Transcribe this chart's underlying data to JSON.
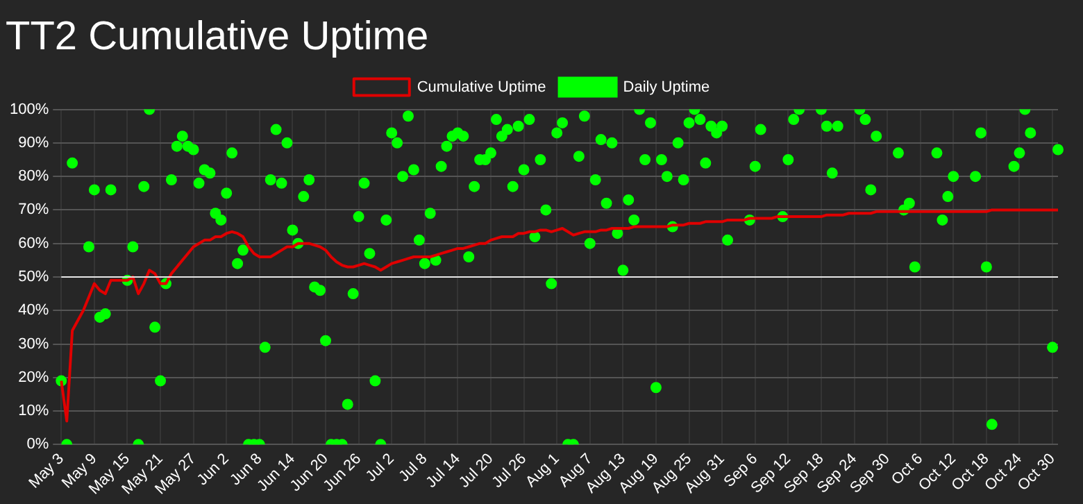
{
  "chart_data": {
    "type": "line",
    "title": "TT2 Cumulative Uptime",
    "categories": [
      "May 3",
      null,
      null,
      null,
      null,
      null,
      "May 9",
      null,
      null,
      null,
      null,
      null,
      "May 15",
      null,
      null,
      null,
      null,
      null,
      "May 21",
      null,
      null,
      null,
      null,
      null,
      "May 27",
      null,
      null,
      null,
      null,
      null,
      "Jun 2",
      null,
      null,
      null,
      null,
      null,
      "Jun 8",
      null,
      null,
      null,
      null,
      null,
      "Jun 14",
      null,
      null,
      null,
      null,
      null,
      "Jun 20",
      null,
      null,
      null,
      null,
      null,
      "Jun 26",
      null,
      null,
      null,
      null,
      null,
      "Jul 2",
      null,
      null,
      null,
      null,
      null,
      "Jul 8",
      null,
      null,
      null,
      null,
      null,
      "Jul 14",
      null,
      null,
      null,
      null,
      null,
      "Jul 20",
      null,
      null,
      null,
      null,
      null,
      "Jul 26",
      null,
      null,
      null,
      null,
      null,
      "Aug 1",
      null,
      null,
      null,
      null,
      null,
      "Aug 7",
      null,
      null,
      null,
      null,
      null,
      "Aug 13",
      null,
      null,
      null,
      null,
      null,
      "Aug 19",
      null,
      null,
      null,
      null,
      null,
      "Aug 25",
      null,
      null,
      null,
      null,
      null,
      "Aug 31",
      null,
      null,
      null,
      null,
      null,
      "Sep 6",
      null,
      null,
      null,
      null,
      null,
      "Sep 12",
      null,
      null,
      null,
      null,
      null,
      "Sep 18",
      null,
      null,
      null,
      null,
      null,
      "Sep 24",
      null,
      null,
      null,
      null,
      null,
      "Sep 30",
      null,
      null,
      null,
      null,
      null,
      "Oct 6",
      null,
      null,
      null,
      null,
      null,
      "Oct 12",
      null,
      null,
      null,
      null,
      null,
      "Oct 18",
      null,
      null,
      null,
      null,
      null,
      "Oct 24",
      null,
      null,
      null,
      null,
      null,
      "Oct 30",
      null
    ],
    "series": [
      {
        "name": "Cumulative Uptime",
        "type": "line",
        "marker": "none",
        "color": "#e00000",
        "values": [
          19,
          7,
          34,
          37,
          40,
          44,
          48,
          46,
          45,
          49,
          49,
          49,
          49,
          50,
          45,
          48,
          52,
          51,
          48,
          48,
          51,
          53,
          55,
          57,
          59,
          60,
          61,
          61,
          62,
          62,
          63,
          63.5,
          63,
          62,
          59,
          57,
          56,
          56,
          56,
          57,
          58,
          59,
          59,
          60,
          60,
          60,
          59.5,
          59,
          58,
          56,
          54.5,
          53.5,
          53,
          53,
          53.5,
          54,
          53.5,
          53,
          52,
          53,
          54,
          54.5,
          55,
          55.5,
          56,
          56,
          56,
          56,
          56.5,
          57,
          57.5,
          58,
          58.5,
          58.5,
          59,
          59.5,
          60,
          60,
          61,
          61.5,
          62,
          62,
          62,
          63,
          63,
          63.5,
          63.5,
          64,
          64,
          63.5,
          64,
          64.5,
          63.5,
          62.5,
          63,
          63.5,
          63.5,
          63.5,
          64,
          64,
          64.5,
          64.5,
          64.5,
          64.5,
          65,
          65,
          65,
          65,
          65,
          65,
          65,
          65.5,
          65.5,
          65.5,
          66,
          66,
          66,
          66.5,
          66.5,
          66.5,
          66.5,
          67,
          67,
          67,
          67,
          67.5,
          67.5,
          67.5,
          67.5,
          67.5,
          68,
          68,
          68,
          68,
          68,
          68,
          68,
          68,
          68,
          68.5,
          68.5,
          68.5,
          68.5,
          69,
          69,
          69,
          69,
          69,
          69.5,
          69.5,
          69.5,
          69.5,
          69.5,
          69.5,
          69.5,
          69.5,
          69.5,
          69.5,
          69.5,
          69.5,
          69.5,
          69.5,
          69.5,
          69.5,
          69.5,
          69.5,
          69.5,
          69.5,
          69.5,
          70,
          70,
          70,
          70,
          70,
          70,
          70,
          70,
          70,
          70,
          70,
          70,
          70
        ]
      },
      {
        "name": "Daily Uptime",
        "type": "scatter",
        "marker": "circle",
        "color": "#00ff00",
        "values": [
          19,
          0,
          84,
          null,
          null,
          59,
          76,
          38,
          39,
          76,
          null,
          null,
          49,
          59,
          0,
          77,
          100,
          35,
          19,
          48,
          79,
          89,
          92,
          89,
          88,
          78,
          82,
          81,
          69,
          67,
          75,
          87,
          54,
          58,
          0,
          0,
          0,
          29,
          79,
          94,
          78,
          90,
          64,
          60,
          74,
          79,
          47,
          46,
          31,
          0,
          0,
          0,
          12,
          45,
          68,
          78,
          57,
          19,
          0,
          67,
          93,
          90,
          80,
          98,
          82,
          61,
          54,
          69,
          55,
          83,
          89,
          92,
          93,
          92,
          56,
          77,
          85,
          85,
          87,
          97,
          92,
          94,
          77,
          95,
          82,
          97,
          62,
          85,
          70,
          48,
          93,
          96,
          0,
          0,
          86,
          98,
          60,
          79,
          91,
          72,
          90,
          63,
          52,
          73,
          67,
          100,
          85,
          96,
          17,
          85,
          80,
          65,
          90,
          79,
          96,
          100,
          97,
          84,
          95,
          93,
          95,
          61,
          null,
          null,
          null,
          67,
          83,
          94,
          null,
          null,
          null,
          68,
          85,
          97,
          100,
          null,
          null,
          null,
          100,
          95,
          81,
          95,
          null,
          null,
          null,
          100,
          97,
          76,
          92,
          null,
          null,
          null,
          87,
          70,
          72,
          53,
          null,
          null,
          null,
          87,
          67,
          74,
          80,
          null,
          null,
          null,
          80,
          93,
          53,
          6,
          null,
          null,
          null,
          83,
          87,
          100,
          93,
          null,
          null,
          null,
          29,
          88
        ]
      }
    ],
    "ylim": [
      0,
      100
    ],
    "yticks": [
      {
        "value": 0,
        "label": "0%"
      },
      {
        "value": 10,
        "label": "10%"
      },
      {
        "value": 20,
        "label": "20%"
      },
      {
        "value": 30,
        "label": "30%"
      },
      {
        "value": 40,
        "label": "40%"
      },
      {
        "value": 50,
        "label": "50%"
      },
      {
        "value": 60,
        "label": "60%"
      },
      {
        "value": 70,
        "label": "70%"
      },
      {
        "value": 80,
        "label": "80%"
      },
      {
        "value": 90,
        "label": "90%"
      },
      {
        "value": 100,
        "label": "100%"
      }
    ],
    "ref_lines": [
      {
        "axis": "y",
        "value": 50,
        "color": "#e8e8e8"
      }
    ],
    "grid": true,
    "legend": "top",
    "line_style": "solid"
  }
}
